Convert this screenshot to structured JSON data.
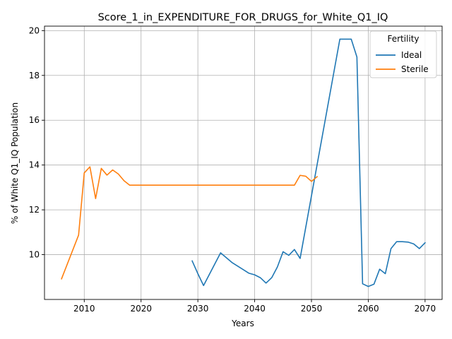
{
  "chart_data": {
    "type": "line",
    "title": "Score_1_in_EXPENDITURE_FOR_DRUGS_for_White_Q1_IQ",
    "xlabel": "Years",
    "ylabel": "% of White Q1_IQ Population",
    "xlim": [
      2003,
      2073
    ],
    "ylim": [
      8.0,
      20.2
    ],
    "xticks": [
      2010,
      2020,
      2030,
      2040,
      2050,
      2060,
      2070
    ],
    "yticks": [
      10,
      12,
      14,
      16,
      18,
      20
    ],
    "grid": true,
    "legend": {
      "title": "Fertility",
      "placement": "top-right"
    },
    "series": [
      {
        "name": "Ideal",
        "color": "#1f77b4",
        "points": [
          [
            2029,
            9.72
          ],
          [
            2030,
            9.15
          ],
          [
            2031,
            8.62
          ],
          [
            2034,
            10.08
          ],
          [
            2036,
            9.65
          ],
          [
            2039,
            9.17
          ],
          [
            2040,
            9.1
          ],
          [
            2041,
            8.97
          ],
          [
            2042,
            8.73
          ],
          [
            2043,
            8.97
          ],
          [
            2044,
            9.45
          ],
          [
            2045,
            10.13
          ],
          [
            2046,
            9.97
          ],
          [
            2047,
            10.23
          ],
          [
            2048,
            9.83
          ],
          [
            2055,
            19.62
          ],
          [
            2057,
            19.62
          ],
          [
            2058,
            18.82
          ],
          [
            2059,
            8.7
          ],
          [
            2060,
            8.58
          ],
          [
            2061,
            8.68
          ],
          [
            2062,
            9.35
          ],
          [
            2063,
            9.15
          ],
          [
            2064,
            10.27
          ],
          [
            2065,
            10.58
          ],
          [
            2066,
            10.58
          ],
          [
            2067,
            10.56
          ],
          [
            2068,
            10.48
          ],
          [
            2069,
            10.27
          ],
          [
            2070,
            10.53
          ]
        ]
      },
      {
        "name": "Sterile",
        "color": "#ff7f0e",
        "points": [
          [
            2006,
            8.92
          ],
          [
            2009,
            10.87
          ],
          [
            2010,
            13.65
          ],
          [
            2011,
            13.92
          ],
          [
            2012,
            12.5
          ],
          [
            2013,
            13.85
          ],
          [
            2014,
            13.55
          ],
          [
            2015,
            13.78
          ],
          [
            2016,
            13.6
          ],
          [
            2017,
            13.3
          ],
          [
            2018,
            13.1
          ],
          [
            2047,
            13.1
          ],
          [
            2048,
            13.54
          ],
          [
            2049,
            13.5
          ],
          [
            2050,
            13.27
          ],
          [
            2051,
            13.48
          ]
        ]
      }
    ]
  }
}
